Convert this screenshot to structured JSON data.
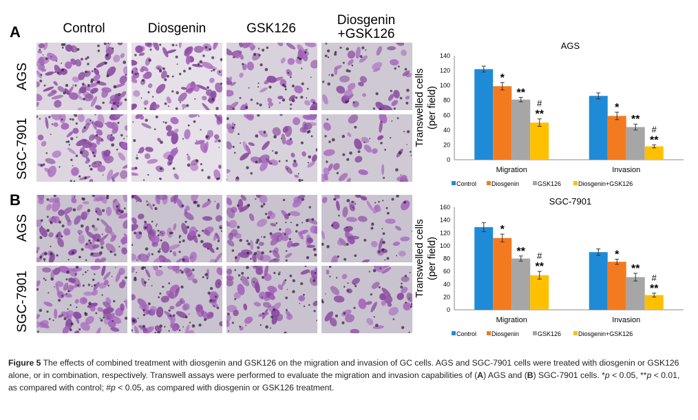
{
  "panels": [
    {
      "letter": "A",
      "cell_lines": [
        "AGS",
        "SGC-7901"
      ]
    },
    {
      "letter": "B",
      "cell_lines": [
        "AGS",
        "SGC-7901"
      ]
    }
  ],
  "column_headers": [
    "Control",
    "Diosgenin",
    "GSK126",
    "Diosgenin\n+GSK126"
  ],
  "column_header_last_line1": "Diosgenin",
  "column_header_last_line2": "+GSK126",
  "colors": {
    "control": "#1f8bd6",
    "diosgenin": "#f47a20",
    "gsk126": "#a6a6a6",
    "combo": "#ffc000",
    "stain_dark": "#5a2a6e",
    "stain_light": "#b48fc8"
  },
  "chart_data": [
    {
      "type": "bar",
      "title": "AGS",
      "ylabel": "Transwelled cells\n(per field)",
      "ylabel_line1": "Transwelled cells",
      "ylabel_line2": "(per field)",
      "ylim": [
        0,
        140
      ],
      "yticks": [
        0,
        20,
        40,
        60,
        80,
        100,
        120,
        140
      ],
      "categories": [
        "Migration",
        "Invasion"
      ],
      "series": [
        {
          "name": "Control",
          "values": [
            122,
            86
          ],
          "errors": [
            4,
            4
          ]
        },
        {
          "name": "Diosgenin",
          "values": [
            99,
            59
          ],
          "errors": [
            5,
            5
          ]
        },
        {
          "name": "GSK126",
          "values": [
            81,
            44
          ],
          "errors": [
            3,
            4
          ]
        },
        {
          "name": "Diosgenin+GSK126",
          "values": [
            50,
            18
          ],
          "errors": [
            5,
            2
          ]
        }
      ],
      "annotations": [
        [
          "",
          "*",
          "**",
          "#\n**"
        ],
        [
          "",
          "*",
          "**",
          "#\n**"
        ]
      ],
      "legend": "bottom"
    },
    {
      "type": "bar",
      "title": "SGC-7901",
      "ylabel": "Transwelled cells\n(per field)",
      "ylabel_line1": "Transwelled cells",
      "ylabel_line2": "(per field)",
      "ylim": [
        0,
        160
      ],
      "yticks": [
        0,
        20,
        40,
        60,
        80,
        100,
        120,
        140,
        160
      ],
      "categories": [
        "Migration",
        "Invasion"
      ],
      "series": [
        {
          "name": "Control",
          "values": [
            129,
            90
          ],
          "errors": [
            7,
            5
          ]
        },
        {
          "name": "Diosgenin",
          "values": [
            112,
            75
          ],
          "errors": [
            6,
            4
          ]
        },
        {
          "name": "GSK126",
          "values": [
            80,
            51
          ],
          "errors": [
            4,
            6
          ]
        },
        {
          "name": "Diosgenin+GSK126",
          "values": [
            54,
            23
          ],
          "errors": [
            6,
            3
          ]
        }
      ],
      "annotations": [
        [
          "",
          "*",
          "**",
          "#\n**"
        ],
        [
          "",
          "*",
          "**",
          "#\n**"
        ]
      ],
      "legend": "bottom"
    }
  ],
  "caption": {
    "label": "Figure 5",
    "text_1": " The effects of combined treatment with diosgenin and GSK126 on the migration and invasion of GC cells. AGS and SGC-7901 cells were treated with diosgenin or GSK126 alone, or in combination, respectively. Transwell assays were performed to evaluate the migration and invasion capabilities of (",
    "a_label": "A",
    "text_2": ") AGS and (",
    "b_label": "B",
    "text_3": ") SGC-7901 cells. *",
    "p1": "p",
    "text_4": " < 0.05, **",
    "p2": "p",
    "text_5": " < 0.01, as compared with control; #",
    "p3": "p",
    "text_6": " < 0.05, as compared with diosgenin or GSK126 treatment."
  }
}
